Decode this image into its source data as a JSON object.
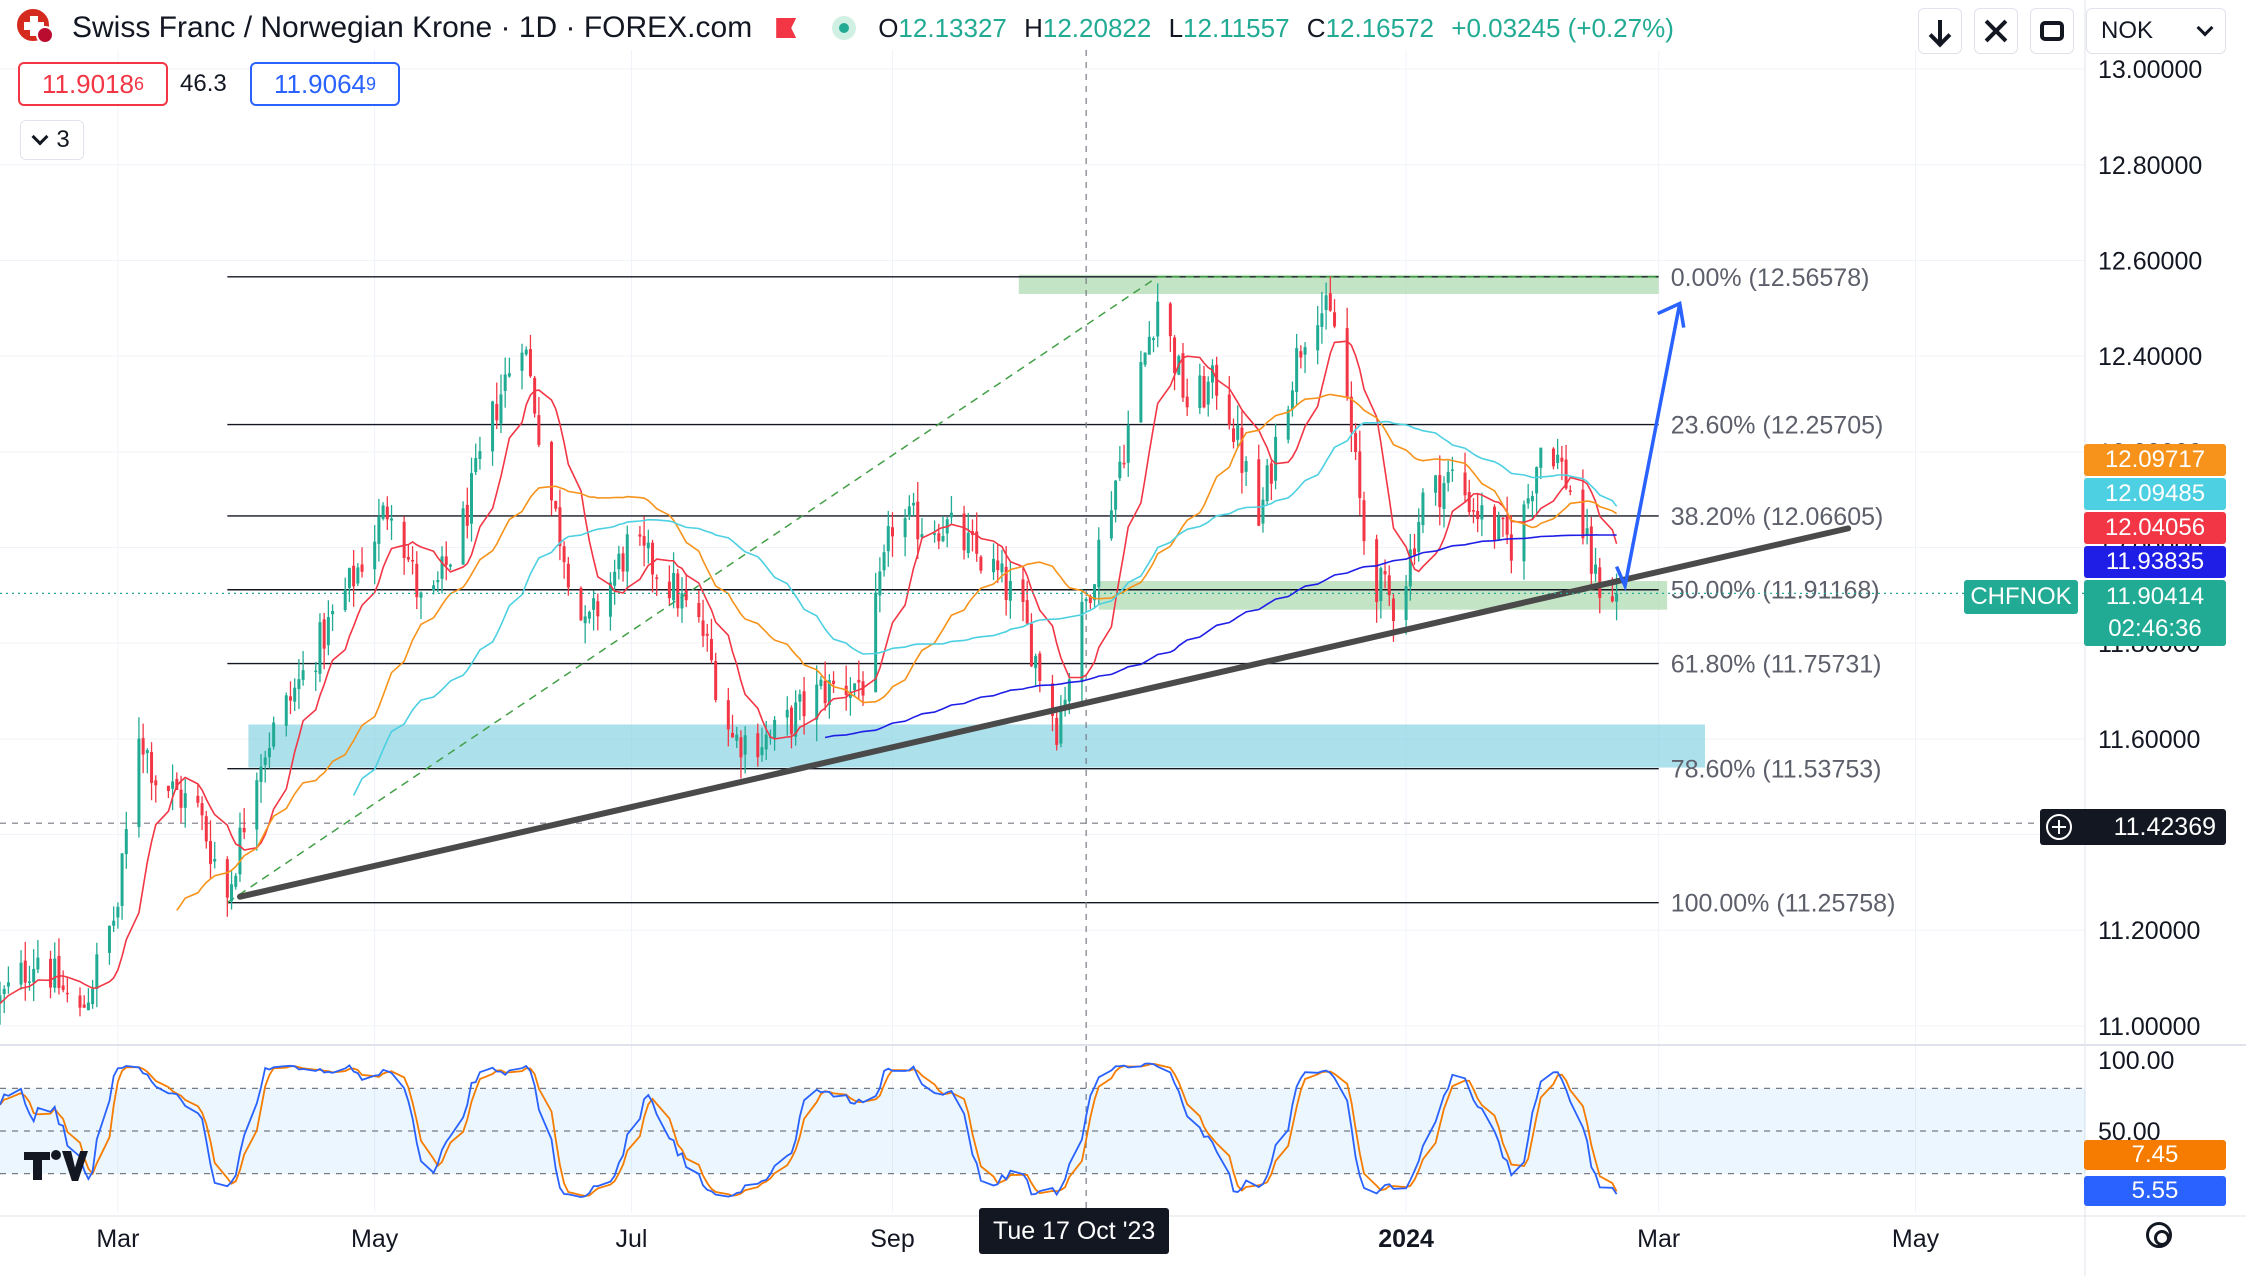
{
  "header": {
    "title": "Swiss Franc / Norwegian Krone · 1D · FOREX.com",
    "ohlc": [
      {
        "k": "O",
        "v": "12.13327"
      },
      {
        "k": "H",
        "v": "12.20822"
      },
      {
        "k": "L",
        "v": "12.11557"
      },
      {
        "k": "C",
        "v": "12.16572"
      }
    ],
    "change": "+0.03245 (+0.27%)"
  },
  "trade": {
    "sell_main": "11.9018",
    "sell_sup": "6",
    "spread": "46.3",
    "buy_main": "11.9064",
    "buy_sup": "9",
    "indicators_count": "3"
  },
  "toolbar": {
    "currency": "NOK"
  },
  "icons": [
    "flag-icon",
    "alert-icon",
    "market-open-icon",
    "download-icon",
    "fullscreen-icon",
    "snapshot-icon",
    "chevron-down-icon",
    "crosshair-plus-icon",
    "tradingview-logo-icon",
    "settings-icon"
  ],
  "tags": {
    "symbol": "CHFNOK",
    "last_price": "11.90414",
    "countdown": "02:46:36",
    "crosshair_price": "11.42369",
    "crosshair_date": "Tue 17 Oct '23",
    "ma_tags": [
      {
        "value": "12.09717",
        "color": "#f7931a"
      },
      {
        "value": "12.09485",
        "color": "#4dd0e1"
      },
      {
        "value": "12.04056",
        "color": "#f23645"
      },
      {
        "value": "11.93835",
        "color": "#1e1ee6"
      }
    ],
    "stoch_tags": [
      {
        "value": "7.45",
        "color": "#f57c00"
      },
      {
        "value": "5.55",
        "color": "#2962ff"
      }
    ]
  },
  "chart_data": {
    "type": "candlestick",
    "symbol": "CHFNOK",
    "timeframe": "1D",
    "y_axis_ticks": [
      "13.00000",
      "12.80000",
      "12.60000",
      "12.40000",
      "12.20000",
      "12.00000",
      "11.80000",
      "11.60000",
      "11.40000",
      "11.20000",
      "11.00000"
    ],
    "ylim": [
      10.96,
      13.04
    ],
    "x_axis_labels": [
      "Mar",
      "May",
      "Jul",
      "Sep",
      "2024",
      "Mar",
      "May"
    ],
    "x_date_range": [
      "2023-02-01",
      "2024-06-01"
    ],
    "close_path": [
      [
        "2023-02-01",
        11.05
      ],
      [
        "2023-02-10",
        11.15
      ],
      [
        "2023-02-20",
        11.02
      ],
      [
        "2023-03-01",
        11.25
      ],
      [
        "2023-03-06",
        11.62
      ],
      [
        "2023-03-10",
        11.52
      ],
      [
        "2023-03-20",
        11.45
      ],
      [
        "2023-03-27",
        11.27
      ],
      [
        "2023-04-03",
        11.55
      ],
      [
        "2023-04-15",
        11.75
      ],
      [
        "2023-04-25",
        11.92
      ],
      [
        "2023-05-05",
        12.1
      ],
      [
        "2023-05-13",
        11.85
      ],
      [
        "2023-05-22",
        12.05
      ],
      [
        "2023-05-30",
        12.3
      ],
      [
        "2023-06-05",
        12.45
      ],
      [
        "2023-06-12",
        12.1
      ],
      [
        "2023-06-20",
        11.82
      ],
      [
        "2023-06-30",
        12.0
      ],
      [
        "2023-07-08",
        11.95
      ],
      [
        "2023-07-18",
        11.82
      ],
      [
        "2023-07-25",
        11.6
      ],
      [
        "2023-08-03",
        11.6
      ],
      [
        "2023-08-15",
        11.7
      ],
      [
        "2023-08-25",
        11.72
      ],
      [
        "2023-09-01",
        12.05
      ],
      [
        "2023-09-13",
        12.05
      ],
      [
        "2023-09-25",
        11.95
      ],
      [
        "2023-10-01",
        11.88
      ],
      [
        "2023-10-10",
        11.63
      ],
      [
        "2023-10-20",
        12.0
      ],
      [
        "2023-10-27",
        12.25
      ],
      [
        "2023-11-03",
        12.52
      ],
      [
        "2023-11-10",
        12.3
      ],
      [
        "2023-11-18",
        12.35
      ],
      [
        "2023-11-27",
        12.05
      ],
      [
        "2023-12-03",
        12.3
      ],
      [
        "2023-12-10",
        12.52
      ],
      [
        "2023-12-16",
        12.45
      ],
      [
        "2023-12-23",
        11.95
      ],
      [
        "2023-12-30",
        11.87
      ],
      [
        "2024-01-05",
        12.1
      ],
      [
        "2024-01-12",
        12.15
      ],
      [
        "2024-01-20",
        12.05
      ],
      [
        "2024-01-27",
        12.0
      ],
      [
        "2024-02-03",
        12.25
      ],
      [
        "2024-02-10",
        12.1
      ],
      [
        "2024-02-15",
        11.93
      ],
      [
        "2024-02-20",
        11.9
      ]
    ],
    "moving_averages": [
      {
        "name": "MA red",
        "color": "#f23645",
        "last": 12.04056
      },
      {
        "name": "MA orange",
        "color": "#f7931a",
        "last": 12.09717
      },
      {
        "name": "MA cyan",
        "color": "#4dd0e1",
        "last": 12.09485
      },
      {
        "name": "MA blue",
        "color": "#1e1ee6",
        "last": 11.93835
      }
    ],
    "fibonacci": {
      "start": [
        "2023-03-27",
        11.25758
      ],
      "end": [
        "2023-11-03",
        12.56578
      ],
      "levels": [
        {
          "label": "0.00%",
          "value": "(12.56578)",
          "price": 12.56578
        },
        {
          "label": "23.60%",
          "value": "(12.25705)",
          "price": 12.25705
        },
        {
          "label": "38.20%",
          "value": "(12.06605)",
          "price": 12.06605
        },
        {
          "label": "50.00%",
          "value": "(11.91168)",
          "price": 11.91168
        },
        {
          "label": "61.80%",
          "value": "(11.75731)",
          "price": 11.75731
        },
        {
          "label": "78.60%",
          "value": "(11.53753)",
          "price": 11.53753
        },
        {
          "label": "100.00%",
          "value": "(11.25758)",
          "price": 11.25758
        }
      ]
    },
    "zones": [
      {
        "name": "resistance",
        "from": "2023-10-01",
        "to": "2024-03-01",
        "low": 12.53,
        "high": 12.57,
        "color": "#a5d6a7"
      },
      {
        "name": "demand",
        "from": "2023-10-20",
        "to": "2024-03-03",
        "low": 11.87,
        "high": 11.93,
        "color": "#a5d6a7"
      },
      {
        "name": "support",
        "from": "2023-04-01",
        "to": "2024-03-12",
        "low": 11.54,
        "high": 11.63,
        "color": "#80d0e0"
      }
    ],
    "trendline": {
      "start": [
        "2023-03-30",
        11.27
      ],
      "end": [
        "2024-04-15",
        12.04
      ]
    },
    "projection": [
      [
        "2024-02-20",
        11.96
      ],
      [
        "2024-02-22",
        11.92
      ],
      [
        "2024-03-06",
        12.51
      ]
    ],
    "crosshair": {
      "date": "2023-10-17",
      "price": 11.42369
    },
    "last_price": 11.90414,
    "stochastic": {
      "ylim": [
        0,
        100
      ],
      "ticks": [
        "100.00",
        "50.00"
      ],
      "band": [
        20,
        80
      ],
      "k_last": 5.55,
      "d_last": 7.45,
      "k_color": "#2962ff",
      "d_color": "#f57c00"
    }
  }
}
